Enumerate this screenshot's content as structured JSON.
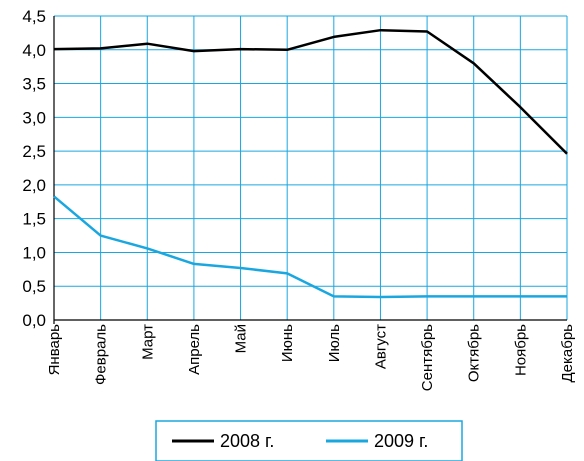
{
  "chart_data": {
    "type": "line",
    "categories": [
      "Январь",
      "Февраль",
      "Март",
      "Апрель",
      "Май",
      "Июнь",
      "Июль",
      "Август",
      "Сентябрь",
      "Октябрь",
      "Ноябрь",
      "Декабрь"
    ],
    "y_ticks": [
      "0,0",
      "0,5",
      "1,0",
      "1,5",
      "2,0",
      "2,5",
      "3,0",
      "3,5",
      "4,0",
      "4,5"
    ],
    "ylim": [
      0,
      4.5
    ],
    "grid": true,
    "legend_position": "bottom",
    "series": [
      {
        "name": "2008 г.",
        "color": "#000000",
        "values": [
          4.01,
          4.02,
          4.09,
          3.98,
          4.01,
          4.0,
          4.19,
          4.29,
          4.27,
          3.8,
          3.15,
          2.46
        ]
      },
      {
        "name": "2009 г.",
        "color": "#1aa7e0",
        "values": [
          1.83,
          1.25,
          1.06,
          0.83,
          0.77,
          0.69,
          0.35,
          0.34,
          0.35,
          0.35,
          0.35,
          0.35
        ]
      }
    ]
  }
}
